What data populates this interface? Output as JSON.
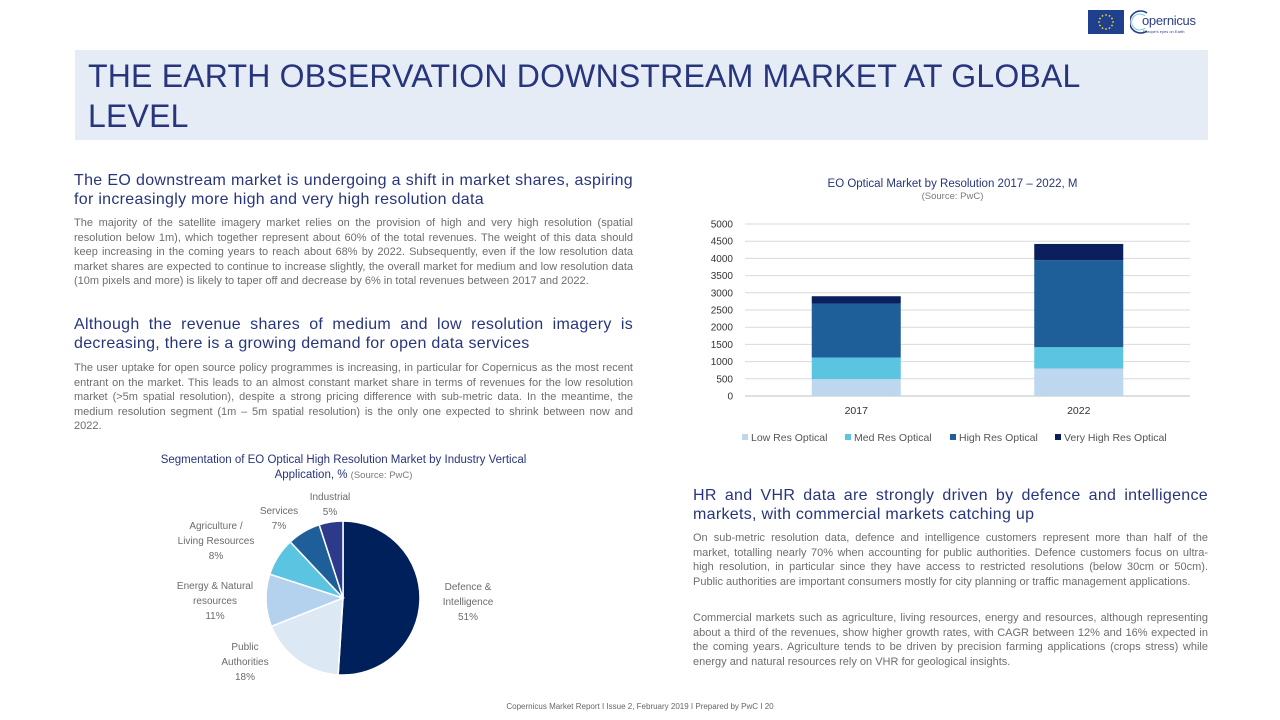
{
  "header": {
    "logo_text": "opernicus",
    "logo_tagline": "Europe's eyes on Earth",
    "title": "THE EARTH OBSERVATION DOWNSTREAM MARKET AT GLOBAL LEVEL"
  },
  "sections": {
    "s1": {
      "heading": "The EO downstream market is undergoing a shift in market shares, aspiring for increasingly more high and very high resolution data",
      "body": "The majority of the satellite imagery market relies on the provision of high and very high resolution (spatial resolution below 1m), which together represent about 60% of the total revenues. The weight of this data should keep increasing in the coming years to reach about 68% by 2022. Subsequently, even if the low resolution data market shares are expected to continue to increase slightly, the overall market for medium and low resolution data (10m pixels and more) is likely to taper off and decrease by 6% in total revenues between 2017 and  2022."
    },
    "s2": {
      "heading": "Although the revenue shares of medium and low resolution imagery is decreasing, there is a growing demand for open data services",
      "body": "The user uptake for open source policy programmes is increasing, in particular for Copernicus as the most recent entrant on the market. This leads to an almost constant market share in terms of revenues for the low resolution market (>5m spatial resolution), despite a strong pricing difference with sub-metric data. In the meantime, the medium resolution segment (1m – 5m spatial resolution) is the only one expected to shrink between now and 2022."
    },
    "s3": {
      "heading": "HR and VHR data are strongly driven by defence and intelligence markets, with commercial markets catching up",
      "body1": "On sub-metric resolution data, defence and intelligence customers represent more than half of the market, totalling nearly 70% when accounting for public authorities. Defence customers focus on ultra-high resolution, in particular since they have access to restricted resolutions (below 30cm or 50cm). Public authorities are important consumers mostly for city planning or traffic management applications.",
      "body2": "Commercial markets such as agriculture, living resources, energy and resources, although representing about a third of the revenues, show higher growth rates, with CAGR between 12% and 16% expected in the coming years. Agriculture tends to be driven by precision farming applications (crops stress) while energy and natural resources rely on VHR for geological insights."
    }
  },
  "chart_data": [
    {
      "type": "bar",
      "stacked": true,
      "title": "EO Optical Market by Resolution 2017 – 2022, M",
      "source": "(Source: PwC)",
      "categories": [
        "2017",
        "2022"
      ],
      "series": [
        {
          "name": "Low Res Optical",
          "color": "#bdd7ee",
          "values": [
            490,
            800
          ]
        },
        {
          "name": "Med Res Optical",
          "color": "#5bc4e1",
          "values": [
            630,
            620
          ]
        },
        {
          "name": "High Res Optical",
          "color": "#1f5f99",
          "values": [
            1570,
            2530
          ]
        },
        {
          "name": "Very High Res Optical",
          "color": "#0a1f5c",
          "values": [
            210,
            470
          ]
        }
      ],
      "yticks": [
        "0",
        "500",
        "1000",
        "1500",
        "2000",
        "2500",
        "3000",
        "3500",
        "4000",
        "4500",
        "5000"
      ],
      "ylim": [
        0,
        5000
      ],
      "grid": true,
      "legend": "bottom"
    },
    {
      "type": "pie",
      "title": "Segmentation of EO Optical High Resolution Market by Industry Vertical Application, %",
      "source": "(Source: PwC)",
      "slices": [
        {
          "label": "Defence & Intelligence",
          "lines": [
            "Defence &",
            "Intelligence"
          ],
          "value": 51,
          "pct": "51%",
          "color": "#00205b"
        },
        {
          "label": "Public Authorities",
          "lines": [
            "Public",
            "Authorities"
          ],
          "value": 18,
          "pct": "18%",
          "color": "#dde8f5"
        },
        {
          "label": "Energy & Natural resources",
          "lines": [
            "Energy & Natural",
            "resources"
          ],
          "value": 11,
          "pct": "11%",
          "color": "#b4d1ee"
        },
        {
          "label": "Agriculture / Living Resources",
          "lines": [
            "Agriculture /",
            "Living Resources"
          ],
          "value": 8,
          "pct": "8%",
          "color": "#5bc4e1"
        },
        {
          "label": "Services",
          "lines": [
            "Services"
          ],
          "value": 7,
          "pct": "7%",
          "color": "#1f5f99"
        },
        {
          "label": "Industrial",
          "lines": [
            "Industrial"
          ],
          "value": 5,
          "pct": "5%",
          "color": "#2d3a8c"
        }
      ]
    }
  ],
  "footer": {
    "text": "Copernicus Market Report I Issue 2, February 2019 I Prepared by PwC I     20"
  }
}
